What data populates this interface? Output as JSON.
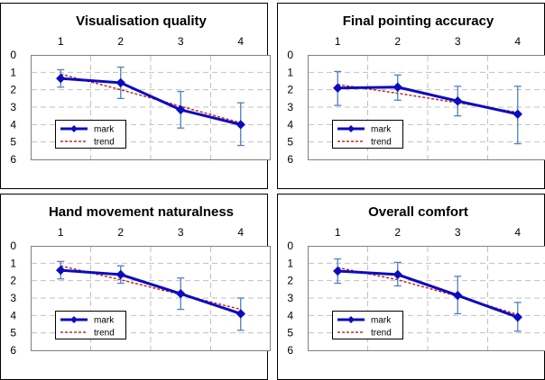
{
  "colors": {
    "mark_line": "#0b0bc0",
    "error_bar": "#4f81bd",
    "trend_line": "#c0282d",
    "grid": "#c0c0c0"
  },
  "chart_data": [
    {
      "type": "line",
      "title": "Visualisation quality",
      "x": [
        1,
        2,
        3,
        4
      ],
      "x_tick_labels": [
        "1",
        "2",
        "3",
        "4"
      ],
      "y_tick_labels": [
        "0",
        "1",
        "2",
        "3",
        "4",
        "5",
        "6"
      ],
      "ylim": [
        0,
        6
      ],
      "y_inverted": true,
      "grid": true,
      "legend_position": "bottom-left",
      "series": [
        {
          "name": "mark",
          "values": [
            1.35,
            1.6,
            3.15,
            4.0
          ],
          "error_low": [
            0.85,
            0.7,
            2.1,
            2.75
          ],
          "error_high": [
            1.85,
            2.5,
            4.2,
            5.2
          ]
        },
        {
          "name": "trend",
          "values": [
            1.1,
            2.0,
            2.95,
            3.9
          ]
        }
      ]
    },
    {
      "type": "line",
      "title": "Final pointing accuracy",
      "x": [
        1,
        2,
        3,
        4
      ],
      "x_tick_labels": [
        "1",
        "2",
        "3",
        "4"
      ],
      "y_tick_labels": [
        "0",
        "1",
        "2",
        "3",
        "4",
        "5",
        "6"
      ],
      "ylim": [
        0,
        6
      ],
      "y_inverted": true,
      "grid": true,
      "legend_position": "bottom-left",
      "series": [
        {
          "name": "mark",
          "values": [
            1.9,
            1.85,
            2.65,
            3.4
          ],
          "error_low": [
            0.95,
            1.15,
            1.8,
            1.8
          ],
          "error_high": [
            2.9,
            2.6,
            3.5,
            5.1
          ]
        },
        {
          "name": "trend",
          "values": [
            1.7,
            2.2,
            2.75,
            3.3
          ]
        }
      ]
    },
    {
      "type": "line",
      "title": "Hand movement naturalness",
      "x": [
        1,
        2,
        3,
        4
      ],
      "x_tick_labels": [
        "1",
        "2",
        "3",
        "4"
      ],
      "y_tick_labels": [
        "0",
        "1",
        "2",
        "3",
        "4",
        "5",
        "6"
      ],
      "ylim": [
        0,
        6
      ],
      "y_inverted": true,
      "grid": true,
      "legend_position": "bottom-left",
      "series": [
        {
          "name": "mark",
          "values": [
            1.4,
            1.65,
            2.75,
            3.9
          ],
          "error_low": [
            0.9,
            1.15,
            1.85,
            3.0
          ],
          "error_high": [
            1.9,
            2.15,
            3.65,
            4.85
          ]
        },
        {
          "name": "trend",
          "values": [
            1.15,
            1.95,
            2.8,
            3.65
          ]
        }
      ]
    },
    {
      "type": "line",
      "title": "Overall comfort",
      "x": [
        1,
        2,
        3,
        4
      ],
      "x_tick_labels": [
        "1",
        "2",
        "3",
        "4"
      ],
      "y_tick_labels": [
        "0",
        "1",
        "2",
        "3",
        "4",
        "5",
        "6"
      ],
      "ylim": [
        0,
        6
      ],
      "y_inverted": true,
      "grid": true,
      "legend_position": "bottom-left",
      "series": [
        {
          "name": "mark",
          "values": [
            1.45,
            1.65,
            2.85,
            4.1
          ],
          "error_low": [
            0.75,
            0.95,
            1.75,
            3.25
          ],
          "error_high": [
            2.15,
            2.3,
            3.9,
            4.9
          ]
        },
        {
          "name": "trend",
          "values": [
            1.25,
            1.95,
            2.9,
            3.95
          ]
        }
      ]
    }
  ]
}
